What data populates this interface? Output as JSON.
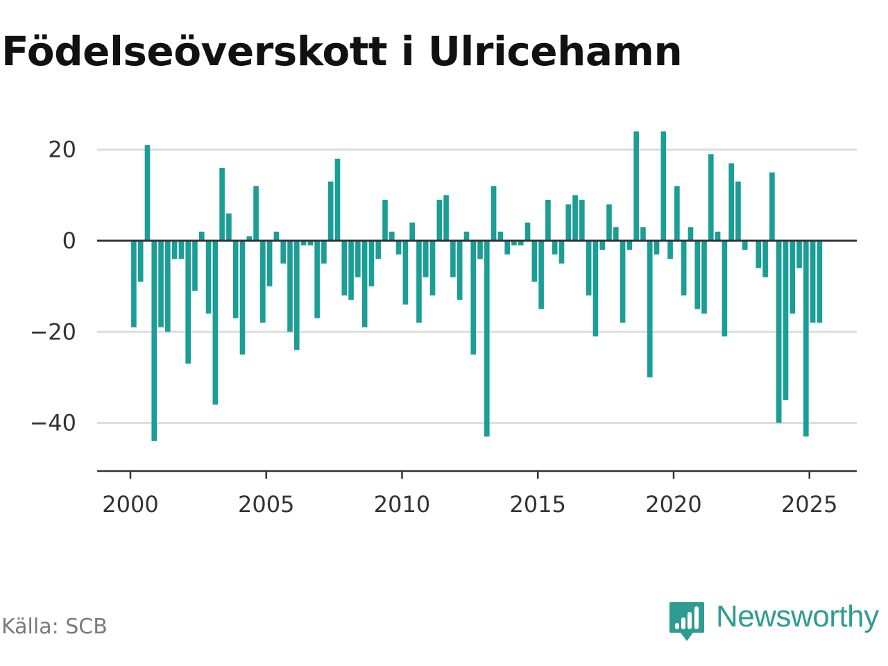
{
  "title": "Födelseöverskott i Ulricehamn",
  "source": "Källa: SCB",
  "brand": {
    "name": "Newsworthy",
    "icon": "newsworthy-chart-icon",
    "color": "#2e9c91"
  },
  "chart_data": {
    "type": "bar",
    "title": "Födelseöverskott i Ulricehamn",
    "xlabel": "",
    "ylabel": "",
    "frequency": "quarterly",
    "start": "2000-Q1",
    "end": "2025-Q2",
    "bar_color": "#1a9e96",
    "grid": true,
    "xlim": [
      2000,
      2026.5
    ],
    "ylim": [
      -50,
      28
    ],
    "x_ticks": [
      "2000",
      "2005",
      "2010",
      "2015",
      "2020",
      "2025"
    ],
    "y_ticks": [
      "20",
      "0",
      "−20",
      "−40"
    ],
    "categories": [
      "2000-Q1",
      "2000-Q2",
      "2000-Q3",
      "2000-Q4",
      "2001-Q1",
      "2001-Q2",
      "2001-Q3",
      "2001-Q4",
      "2002-Q1",
      "2002-Q2",
      "2002-Q3",
      "2002-Q4",
      "2003-Q1",
      "2003-Q2",
      "2003-Q3",
      "2003-Q4",
      "2004-Q1",
      "2004-Q2",
      "2004-Q3",
      "2004-Q4",
      "2005-Q1",
      "2005-Q2",
      "2005-Q3",
      "2005-Q4",
      "2006-Q1",
      "2006-Q2",
      "2006-Q3",
      "2006-Q4",
      "2007-Q1",
      "2007-Q2",
      "2007-Q3",
      "2007-Q4",
      "2008-Q1",
      "2008-Q2",
      "2008-Q3",
      "2008-Q4",
      "2009-Q1",
      "2009-Q2",
      "2009-Q3",
      "2009-Q4",
      "2010-Q1",
      "2010-Q2",
      "2010-Q3",
      "2010-Q4",
      "2011-Q1",
      "2011-Q2",
      "2011-Q3",
      "2011-Q4",
      "2012-Q1",
      "2012-Q2",
      "2012-Q3",
      "2012-Q4",
      "2013-Q1",
      "2013-Q2",
      "2013-Q3",
      "2013-Q4",
      "2014-Q1",
      "2014-Q2",
      "2014-Q3",
      "2014-Q4",
      "2015-Q1",
      "2015-Q2",
      "2015-Q3",
      "2015-Q4",
      "2016-Q1",
      "2016-Q2",
      "2016-Q3",
      "2016-Q4",
      "2017-Q1",
      "2017-Q2",
      "2017-Q3",
      "2017-Q4",
      "2018-Q1",
      "2018-Q2",
      "2018-Q3",
      "2018-Q4",
      "2019-Q1",
      "2019-Q2",
      "2019-Q3",
      "2019-Q4",
      "2020-Q1",
      "2020-Q2",
      "2020-Q3",
      "2020-Q4",
      "2021-Q1",
      "2021-Q2",
      "2021-Q3",
      "2021-Q4",
      "2022-Q1",
      "2022-Q2",
      "2022-Q3",
      "2022-Q4",
      "2023-Q1",
      "2023-Q2",
      "2023-Q3",
      "2023-Q4",
      "2024-Q1",
      "2024-Q2",
      "2024-Q3",
      "2024-Q4",
      "2025-Q1",
      "2025-Q2"
    ],
    "values": [
      -19,
      -9,
      21,
      -44,
      -19,
      -20,
      -4,
      -4,
      -27,
      -11,
      2,
      -16,
      -36,
      16,
      6,
      -17,
      -25,
      1,
      12,
      -18,
      -10,
      2,
      -5,
      -20,
      -24,
      -1,
      -1,
      -17,
      -5,
      13,
      18,
      -12,
      -13,
      -8,
      -19,
      -10,
      -4,
      9,
      2,
      -3,
      -14,
      4,
      -18,
      -8,
      -12,
      9,
      10,
      -8,
      -13,
      2,
      -25,
      -4,
      -43,
      12,
      2,
      -3,
      -1,
      -1,
      4,
      -9,
      -15,
      9,
      -3,
      -5,
      8,
      10,
      9,
      -12,
      -21,
      -2,
      8,
      3,
      -18,
      -2,
      24,
      3,
      -30,
      -3,
      24,
      -4,
      12,
      -12,
      3,
      -15,
      -16,
      19,
      2,
      -21,
      17,
      13,
      -2,
      0,
      -6,
      -8,
      15,
      -40,
      -35,
      -16,
      -6,
      -43,
      -18,
      -18
    ]
  }
}
